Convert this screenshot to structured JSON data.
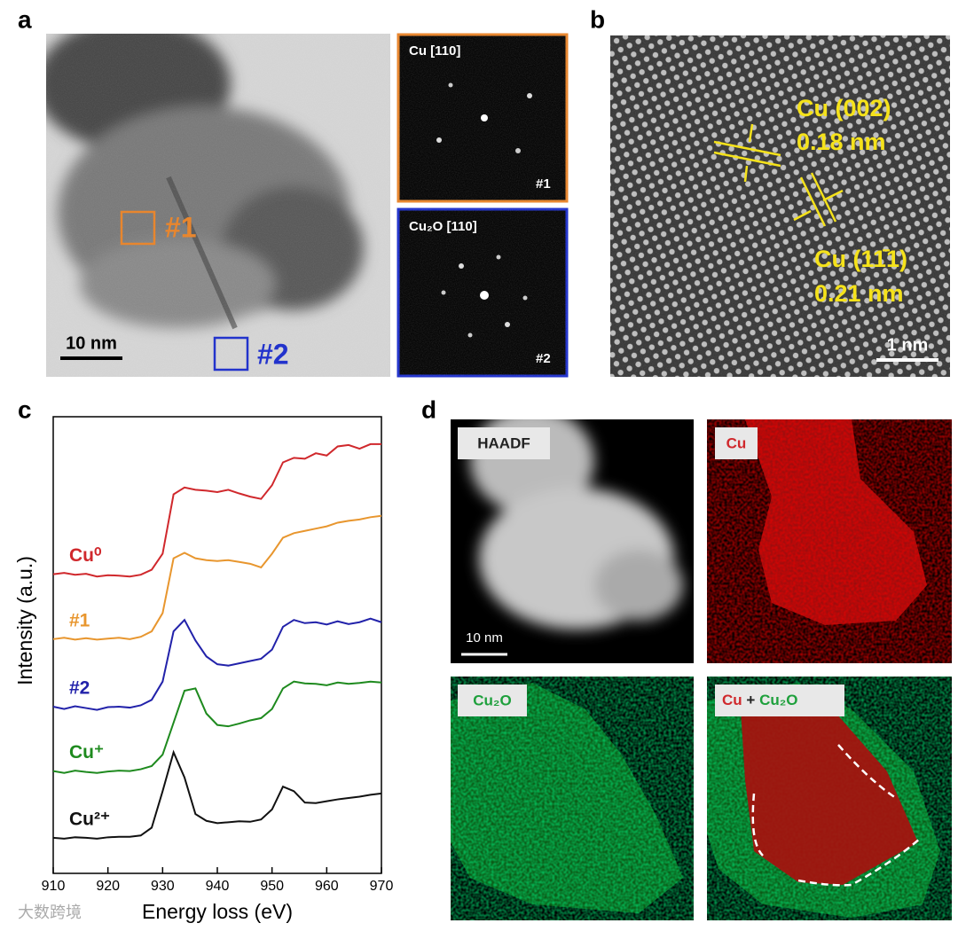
{
  "panel_letters": [
    "a",
    "b",
    "c",
    "d"
  ],
  "panels": {
    "a": {
      "scale_bar": "10 nm",
      "region_1": "#1",
      "region_2": "#2",
      "fft_1": {
        "title": "Cu [110]",
        "tag": "#1"
      },
      "fft_2": {
        "title": "Cu₂O [110]",
        "tag": "#2"
      }
    },
    "b": {
      "plane_1": "Cu (002)",
      "spacing_1": "0.18 nm",
      "plane_2": "Cu (11̄1)",
      "spacing_2": "0.21 nm",
      "scale_bar": "1 nm"
    },
    "d": {
      "haadf": "HAADF",
      "cu": "Cu",
      "cu2o": "Cu₂O",
      "overlay": [
        "Cu",
        "+",
        "Cu₂O"
      ],
      "scale_bar": "10 nm"
    }
  },
  "watermark": "大数跨境",
  "chart_data": {
    "type": "line",
    "x_label": "Energy loss (eV)",
    "y_label": "Intensity (a.u.)",
    "x": [
      910,
      912,
      914,
      916,
      918,
      920,
      922,
      924,
      926,
      928,
      930,
      932,
      934,
      936,
      938,
      940,
      942,
      944,
      946,
      948,
      950,
      952,
      954,
      956,
      958,
      960,
      962,
      964,
      966,
      968,
      970
    ],
    "xlim": [
      910,
      970
    ],
    "xticks": [
      910,
      920,
      930,
      940,
      950,
      960,
      970
    ],
    "ylim": [
      0,
      100
    ],
    "series": [
      {
        "name": "Cu⁰",
        "color": "#d0282c",
        "values": [
          65.5,
          65.8,
          65.4,
          65.6,
          65.0,
          65.3,
          65.2,
          65.0,
          65.4,
          66.5,
          70,
          83,
          84.5,
          84,
          83.8,
          83.5,
          84,
          83.2,
          82.5,
          82,
          85,
          90,
          91,
          90.8,
          92,
          91.5,
          93.5,
          93.8,
          93,
          94,
          94
        ]
      },
      {
        "name": "#1",
        "color": "#e8962e",
        "values": [
          51.3,
          51.6,
          51.2,
          51.5,
          51.2,
          51.4,
          51.6,
          51.3,
          51.8,
          53,
          57,
          69,
          70.2,
          69,
          68.6,
          68.4,
          68.6,
          68.2,
          67.8,
          67,
          70,
          73.5,
          74.5,
          75,
          75.5,
          76,
          76.8,
          77.2,
          77.5,
          78,
          78.3
        ]
      },
      {
        "name": "#2",
        "color": "#2222aa",
        "values": [
          36.5,
          36.0,
          36.6,
          36.2,
          35.8,
          36.4,
          36.5,
          36.3,
          36.8,
          38,
          42,
          53,
          55.5,
          51,
          47.5,
          45.8,
          45.5,
          46,
          46.5,
          47,
          49,
          54,
          55.5,
          54.8,
          55,
          54.5,
          55.2,
          54.6,
          55,
          55.8,
          55
        ]
      },
      {
        "name": "Cu⁺",
        "color": "#1e8a1e",
        "values": [
          22.4,
          22.0,
          22.5,
          22.2,
          22.0,
          22.3,
          22.5,
          22.4,
          22.8,
          23.5,
          26,
          33,
          40,
          40.5,
          35,
          32.5,
          32.2,
          32.8,
          33.5,
          34,
          36,
          40.5,
          42,
          41.6,
          41.5,
          41.2,
          41.8,
          41.5,
          41.7,
          42,
          41.8
        ]
      },
      {
        "name": "Cu²⁺",
        "color": "#111111",
        "values": [
          7.8,
          7.6,
          7.9,
          7.8,
          7.6,
          7.9,
          8.0,
          8.0,
          8.3,
          10,
          18,
          26.5,
          21,
          13,
          11.5,
          11,
          11.2,
          11.4,
          11.3,
          11.8,
          14,
          19,
          18,
          15.5,
          15.4,
          15.8,
          16.2,
          16.5,
          16.8,
          17.2,
          17.5
        ]
      }
    ]
  }
}
